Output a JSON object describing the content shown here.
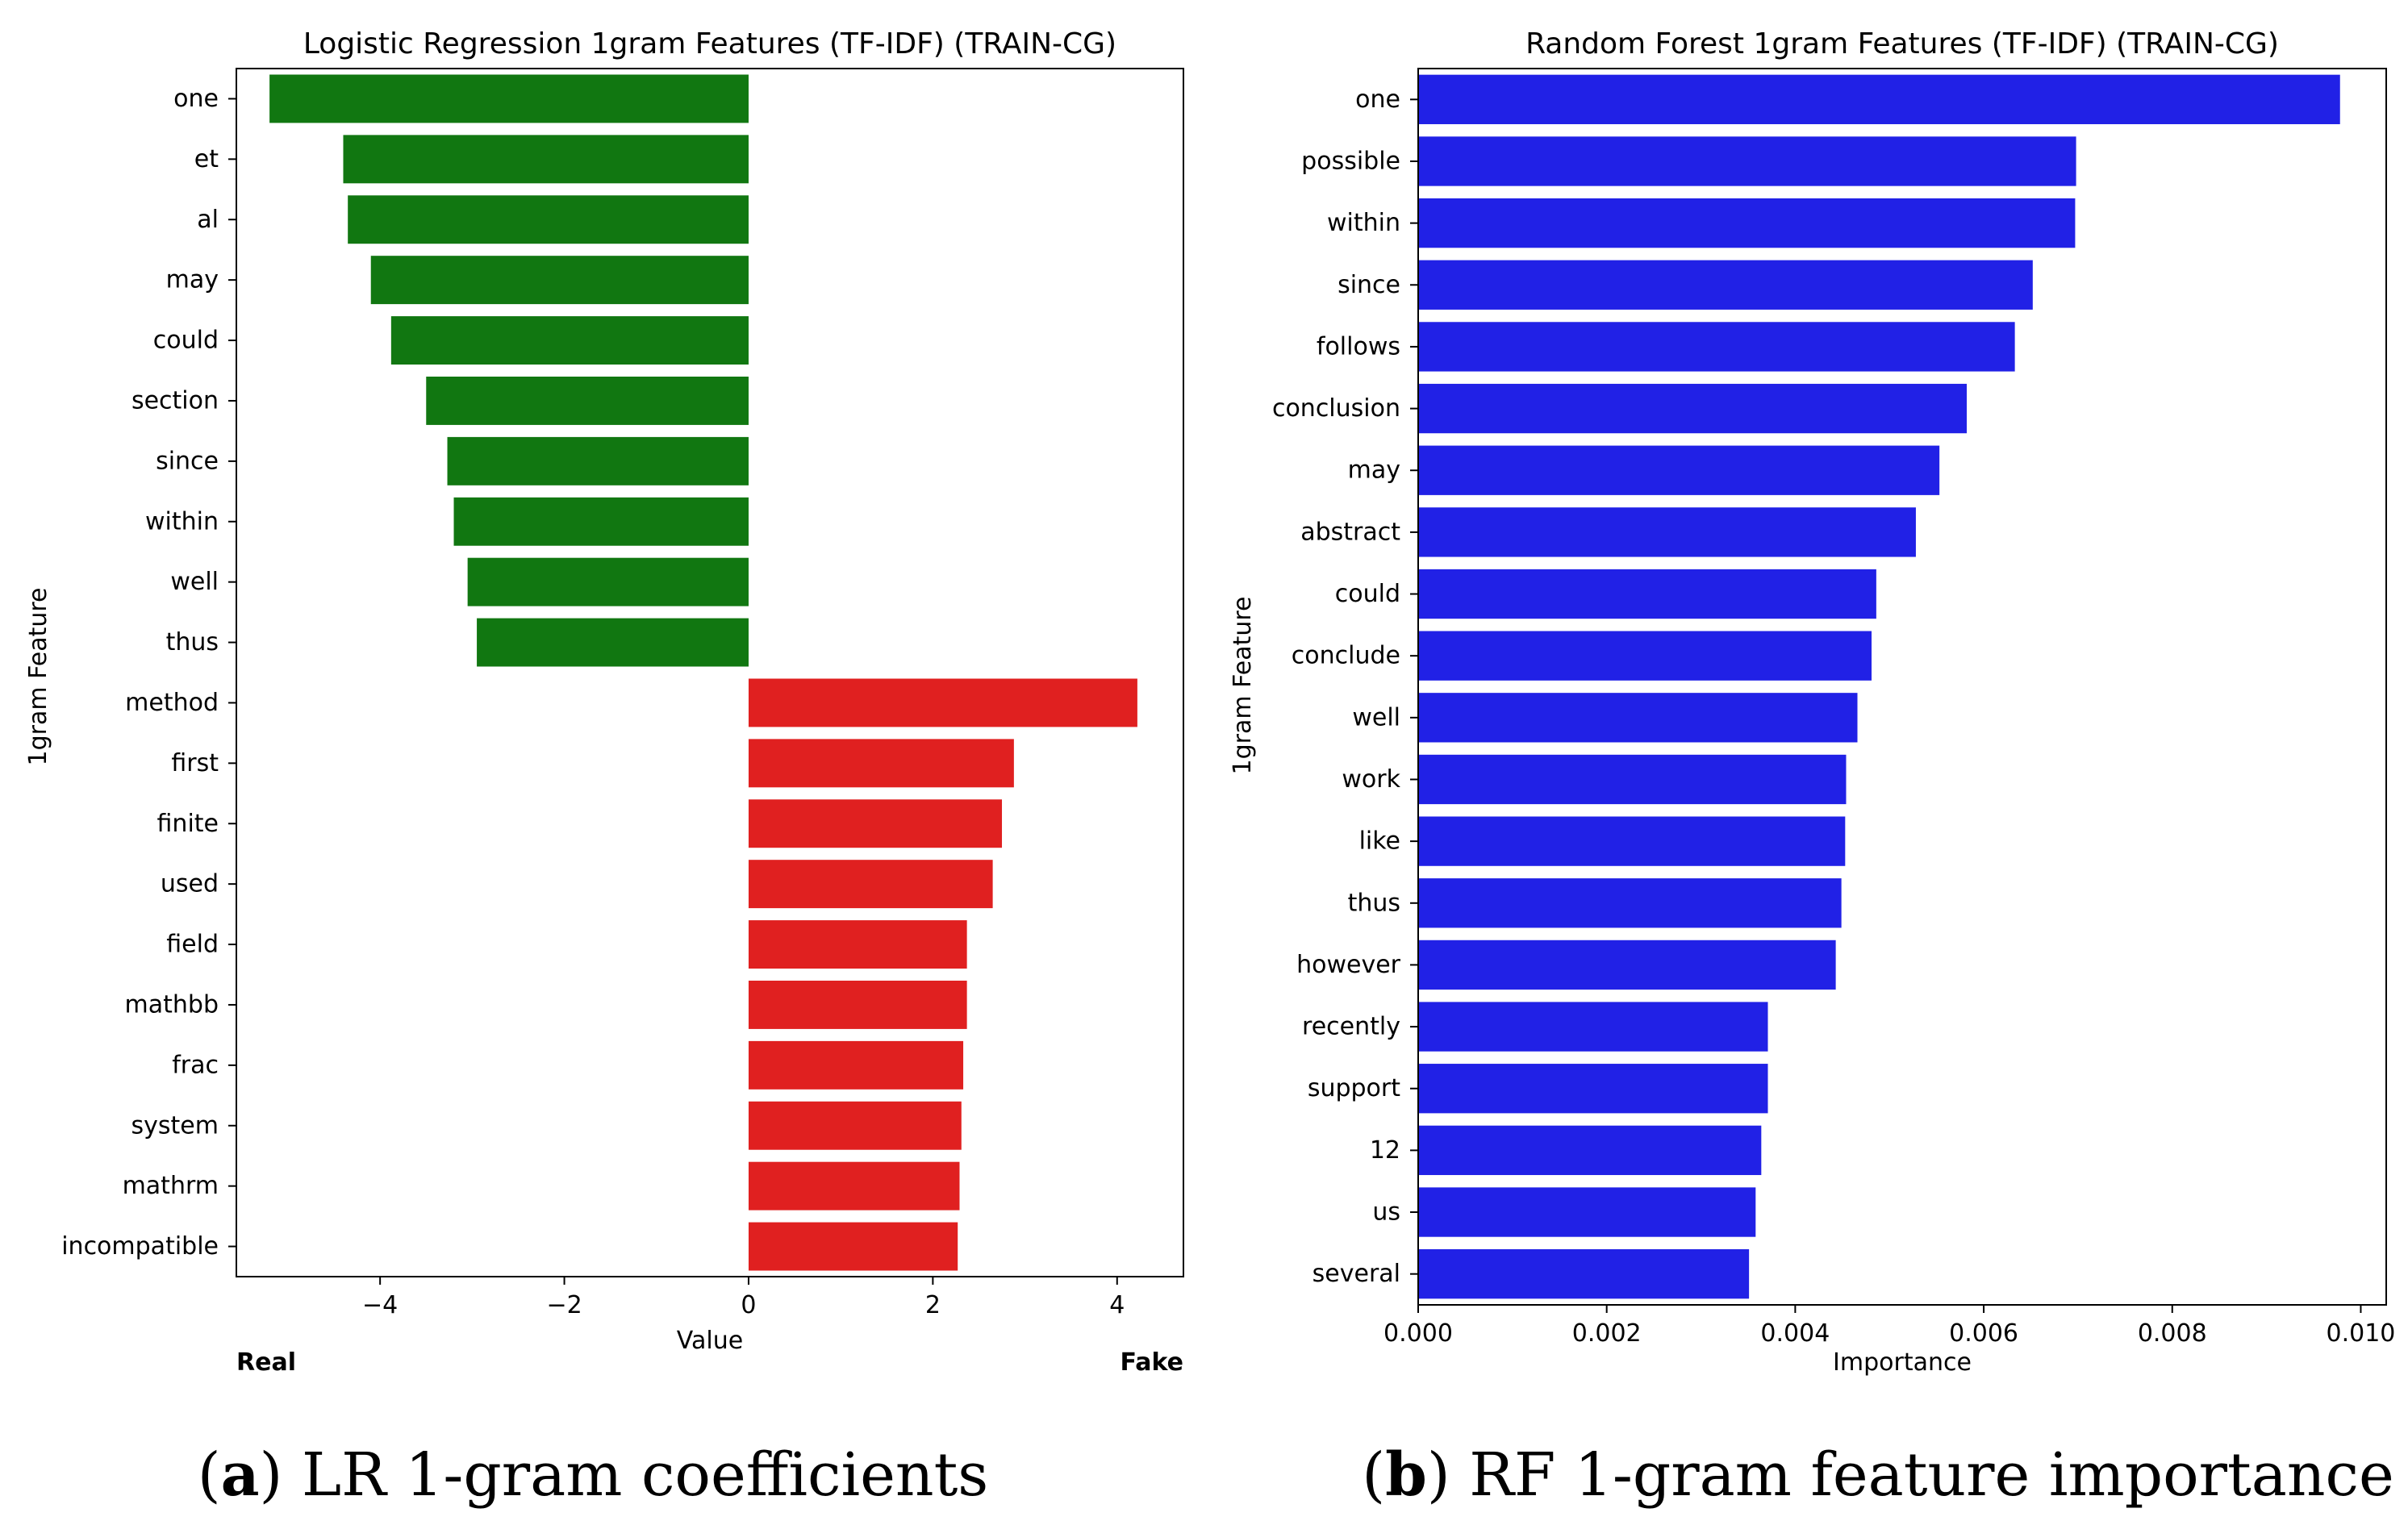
{
  "chart_data": [
    {
      "type": "bar",
      "orientation": "horizontal",
      "title": "Logistic Regression 1gram Features (TF-IDF) (TRAIN-CG)",
      "xlabel": "Value",
      "ylabel": "1gram Feature",
      "categories": [
        "one",
        "et",
        "al",
        "may",
        "could",
        "section",
        "since",
        "within",
        "well",
        "thus",
        "method",
        "first",
        "finite",
        "used",
        "field",
        "mathbb",
        "frac",
        "system",
        "mathrm",
        "incompatible"
      ],
      "values": [
        -5.2,
        -4.4,
        -4.35,
        -4.1,
        -3.88,
        -3.5,
        -3.27,
        -3.2,
        -3.05,
        -2.95,
        4.22,
        2.88,
        2.75,
        2.65,
        2.37,
        2.37,
        2.33,
        2.31,
        2.29,
        2.27
      ],
      "bar_colors": [
        "#117711",
        "#117711",
        "#117711",
        "#117711",
        "#117711",
        "#117711",
        "#117711",
        "#117711",
        "#117711",
        "#117711",
        "#e02020",
        "#e02020",
        "#e02020",
        "#e02020",
        "#e02020",
        "#e02020",
        "#e02020",
        "#e02020",
        "#e02020",
        "#e02020"
      ],
      "xlim": [
        -5.56,
        4.72
      ],
      "xticks": [
        -4,
        -2,
        0,
        2,
        4
      ],
      "xtick_labels": [
        "−4",
        "−2",
        "0",
        "2",
        "4"
      ],
      "annotations": {
        "left": "Real",
        "right": "Fake"
      },
      "grid": false,
      "legend": "none",
      "caption_letter": "a",
      "caption": "LR 1-gram coefficients"
    },
    {
      "type": "bar",
      "orientation": "horizontal",
      "title": "Random Forest 1gram Features (TF-IDF) (TRAIN-CG)",
      "xlabel": "Importance",
      "ylabel": "1gram Feature",
      "categories": [
        "one",
        "possible",
        "within",
        "since",
        "follows",
        "conclusion",
        "may",
        "abstract",
        "could",
        "conclude",
        "well",
        "work",
        "like",
        "thus",
        "however",
        "recently",
        "support",
        "12",
        "us",
        "several"
      ],
      "values": [
        0.00978,
        0.00698,
        0.00697,
        0.00652,
        0.00633,
        0.00582,
        0.00553,
        0.00528,
        0.00486,
        0.00481,
        0.00466,
        0.00454,
        0.00453,
        0.00449,
        0.00443,
        0.00371,
        0.00371,
        0.00364,
        0.00358,
        0.00351
      ],
      "bar_color": "#2121e6",
      "xlim": [
        0,
        0.01027
      ],
      "xticks": [
        0,
        0.002,
        0.004,
        0.006,
        0.008,
        0.01
      ],
      "xtick_labels": [
        "0.000",
        "0.002",
        "0.004",
        "0.006",
        "0.008",
        "0.010"
      ],
      "grid": false,
      "legend": "none",
      "caption_letter": "b",
      "caption": "RF 1-gram feature importance"
    }
  ]
}
